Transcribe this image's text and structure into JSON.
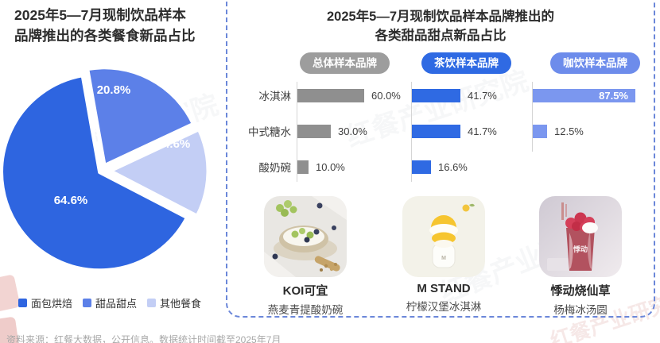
{
  "left_panel": {
    "title_line1": "2025年5—7月现制饮品样本",
    "title_line2": "品牌推出的各类餐食新品占比"
  },
  "right_panel": {
    "title_line1": "2025年5—7月现制饮品样本品牌推出的",
    "title_line2": "各类甜品甜点新品占比"
  },
  "chart_data": [
    {
      "type": "pie",
      "title": "2025年5—7月现制饮品样本品牌推出的各类餐食新品占比",
      "labels": [
        "面包烘焙",
        "甜品甜点",
        "其他餐食"
      ],
      "values": [
        64.6,
        20.8,
        14.6
      ],
      "unit": "%",
      "colors": [
        "#2e65e0",
        "#5c80e8",
        "#c3cef5"
      ],
      "legend_position": "bottom"
    },
    {
      "type": "bar",
      "title": "2025年5—7月现制饮品样本品牌推出的各类甜品甜点新品占比",
      "orientation": "horizontal",
      "categories": [
        "冰淇淋",
        "中式糖水",
        "酸奶碗"
      ],
      "series": [
        {
          "name": "总体样本品牌",
          "values": [
            60.0,
            30.0,
            10.0
          ],
          "color": "#8f8f8f",
          "pill_color": "#9d9d9d"
        },
        {
          "name": "茶饮样本品牌",
          "values": [
            41.7,
            41.7,
            16.6
          ],
          "color": "#2f6ae3",
          "pill_color": "#2f6ae3"
        },
        {
          "name": "咖饮样本品牌",
          "values": [
            87.5,
            12.5,
            null
          ],
          "color": "#7b97ef",
          "pill_color": "#6d8ceb"
        }
      ],
      "value_suffix": "%",
      "xlim": [
        0,
        100
      ],
      "grid": false
    }
  ],
  "products": [
    {
      "brand": "KOI可宜",
      "item": "燕麦青提酸奶碗",
      "image": "yogurt-bowl-photo"
    },
    {
      "brand": "M STAND",
      "item": "柠檬汉堡冰淇淋",
      "image": "lemon-burger-ice-cream-photo"
    },
    {
      "brand": "悸动烧仙草",
      "item": "杨梅冰汤圆",
      "image": "bayberry-cup-photo",
      "cup_text": "悸动"
    }
  ],
  "footer": {
    "source_note": "资料来源：红餐大数据，公开信息。数据统计时间截至2025年7月"
  },
  "watermark": {
    "text": "红餐产业研究院"
  }
}
